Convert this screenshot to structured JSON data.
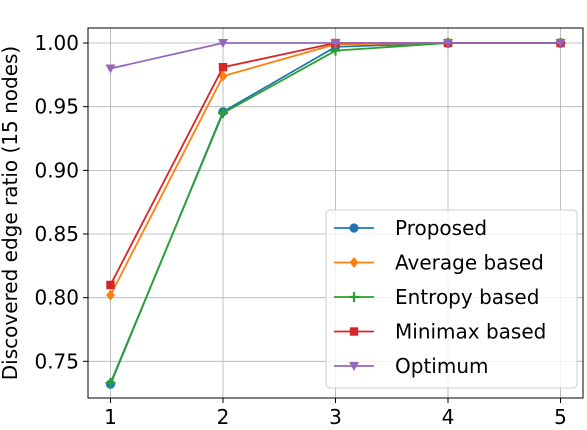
{
  "chart_data": {
    "type": "line",
    "ylabel": "Discovered edge ratio (15 nodes)",
    "xlabel": "",
    "title": "",
    "x": [
      1,
      2,
      3,
      4,
      5
    ],
    "xticks": [
      "1",
      "2",
      "3",
      "4",
      "5"
    ],
    "yticks": [
      "0.75",
      "0.80",
      "0.85",
      "0.90",
      "0.95",
      "1.00"
    ],
    "xlim": [
      0.8,
      5.2
    ],
    "ylim": [
      0.7212,
      1.0118
    ],
    "grid": true,
    "legend_position": "lower-right",
    "series": [
      {
        "name": "Proposed",
        "color": "#1f77b4",
        "marker": "circle",
        "values": [
          0.732,
          0.946,
          0.997,
          1.0,
          1.0
        ]
      },
      {
        "name": "Average based",
        "color": "#ff7f0e",
        "marker": "diamond",
        "values": [
          0.802,
          0.974,
          0.999,
          1.0,
          1.0
        ]
      },
      {
        "name": "Entropy based",
        "color": "#2ca02c",
        "marker": "plus",
        "values": [
          0.733,
          0.945,
          0.994,
          1.0,
          1.0
        ]
      },
      {
        "name": "Minimax based",
        "color": "#d62728",
        "marker": "square",
        "values": [
          0.81,
          0.981,
          1.0,
          1.0,
          1.0
        ]
      },
      {
        "name": "Optimum",
        "color": "#9467bd",
        "marker": "triangle-down",
        "values": [
          0.98,
          1.0,
          1.0,
          1.0,
          1.0
        ]
      }
    ]
  }
}
